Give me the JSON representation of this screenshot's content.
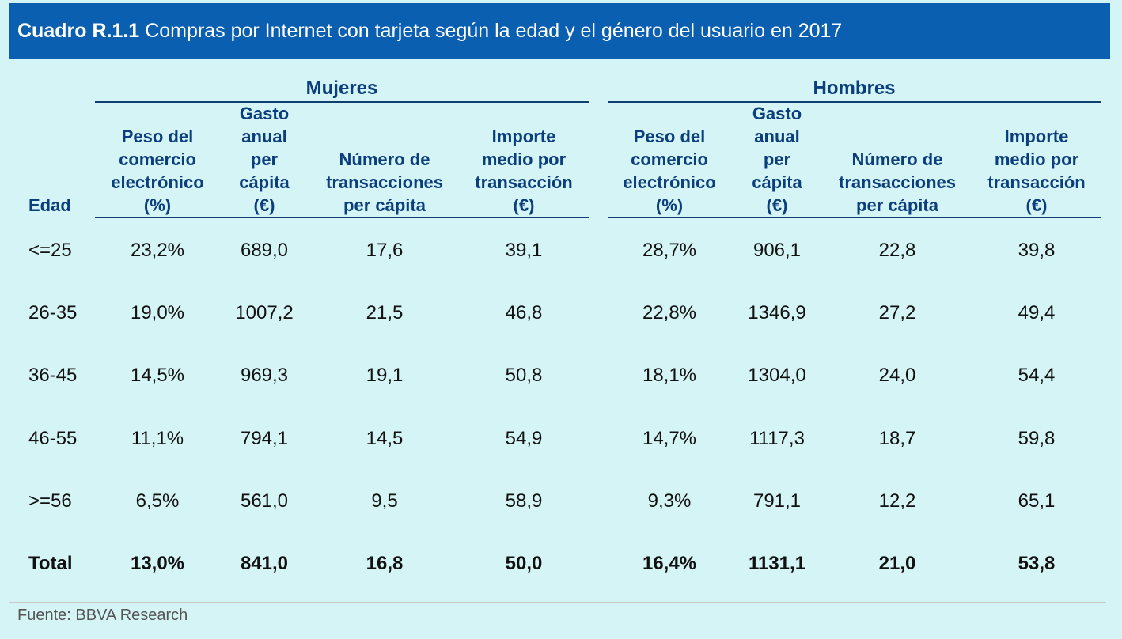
{
  "title": {
    "code": "Cuadro R.1.1",
    "text": "Compras por Internet con tarjeta según la edad y el género del usuario en 2017"
  },
  "groups": [
    "Mujeres",
    "Hombres"
  ],
  "columns": {
    "age": "Edad",
    "peso": [
      "Peso del",
      "comercio",
      "electrónico",
      "(%)"
    ],
    "gasto": [
      "Gasto",
      "anual",
      "per",
      "cápita",
      "(€)"
    ],
    "numero": [
      "Número de",
      "transacciones",
      "per cápita"
    ],
    "importe": [
      "Importe",
      "medio por",
      "transacción",
      "(€)"
    ]
  },
  "rows": [
    {
      "age": "<=25",
      "m": [
        "23,2%",
        "689,0",
        "17,6",
        "39,1"
      ],
      "h": [
        "28,7%",
        "906,1",
        "22,8",
        "39,8"
      ]
    },
    {
      "age": "26-35",
      "m": [
        "19,0%",
        "1007,2",
        "21,5",
        "46,8"
      ],
      "h": [
        "22,8%",
        "1346,9",
        "27,2",
        "49,4"
      ]
    },
    {
      "age": "36-45",
      "m": [
        "14,5%",
        "969,3",
        "19,1",
        "50,8"
      ],
      "h": [
        "18,1%",
        "1304,0",
        "24,0",
        "54,4"
      ]
    },
    {
      "age": "46-55",
      "m": [
        "11,1%",
        "794,1",
        "14,5",
        "54,9"
      ],
      "h": [
        "14,7%",
        "1117,3",
        "18,7",
        "59,8"
      ]
    },
    {
      "age": ">=56",
      "m": [
        "6,5%",
        "561,0",
        "9,5",
        "58,9"
      ],
      "h": [
        "9,3%",
        "791,1",
        "12,2",
        "65,1"
      ]
    },
    {
      "age": "Total",
      "m": [
        "13,0%",
        "841,0",
        "16,8",
        "50,0"
      ],
      "h": [
        "16,4%",
        "1131,1",
        "21,0",
        "53,8"
      ],
      "bold": true
    }
  ],
  "source": "Fuente: BBVA Research",
  "colors": {
    "title_bg": "#0b5fb1",
    "page_bg": "#d5f4f6",
    "header_text": "#0b3e7c"
  }
}
